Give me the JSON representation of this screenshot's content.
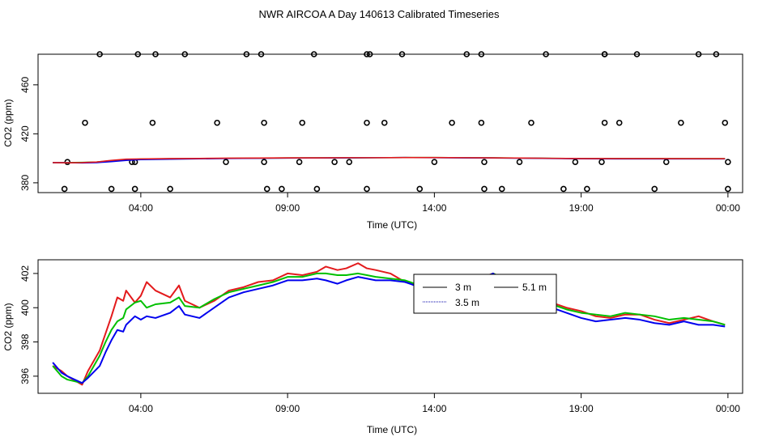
{
  "title": "NWR AIRCOA A  Day 140613  Calibrated Timeseries",
  "colors": {
    "red": "#e31a1c",
    "green": "#00c000",
    "blue": "#0000ee",
    "dark_blue": "#0000aa"
  },
  "chart_data": [
    {
      "type": "scatter",
      "xlabel": "Time (UTC)",
      "ylabel": "CO2 (ppm)",
      "x_ticks": [
        "04:00",
        "09:00",
        "14:00",
        "19:00",
        "00:00"
      ],
      "x_tick_hours": [
        4,
        9,
        14,
        19,
        24
      ],
      "y_ticks": [
        "380",
        "420",
        "460"
      ],
      "y_tick_values": [
        380,
        420,
        460
      ],
      "xlim": [
        0.5,
        24.5
      ],
      "ylim": [
        372,
        485
      ],
      "points": {
        "x": [
          1.4,
          1.5,
          2.1,
          2.6,
          3.0,
          3.7,
          3.8,
          3.8,
          3.9,
          4.4,
          4.5,
          5.0,
          5.5,
          6.6,
          6.9,
          7.6,
          8.1,
          8.2,
          8.2,
          8.3,
          8.8,
          9.4,
          9.5,
          9.9,
          10.0,
          10.6,
          11.1,
          11.7,
          11.7,
          11.7,
          11.8,
          12.3,
          12.9,
          13.5,
          14.0,
          14.6,
          15.1,
          15.6,
          15.6,
          15.7,
          15.7,
          16.3,
          16.9,
          17.3,
          17.8,
          18.4,
          18.8,
          19.2,
          19.7,
          19.8,
          19.8,
          19.8,
          20.3,
          20.9,
          21.5,
          21.9,
          22.4,
          23.0,
          23.6,
          23.9,
          24.0,
          24.0
        ]
      },
      "series_values_note": "",
      "y_points": [
        375,
        397,
        429,
        485,
        375,
        397,
        397,
        375,
        485,
        429,
        485,
        375,
        485,
        429,
        397,
        485,
        485,
        429,
        397,
        375,
        375,
        397,
        429,
        485,
        375,
        397,
        397,
        375,
        429,
        485,
        485,
        429,
        485,
        375,
        397,
        429,
        485,
        485,
        429,
        397,
        375,
        375,
        397,
        429,
        485,
        375,
        397,
        375,
        397,
        429,
        485,
        485,
        429,
        485,
        375,
        397,
        429,
        485,
        485,
        429,
        397,
        375
      ],
      "series": [
        {
          "name": "",
          "color": "green",
          "values": [
            396.5,
            396.5,
            396.7,
            397.0,
            398.0,
            398.8,
            399.4,
            399.6,
            399.8,
            400.0,
            400.1,
            400.3,
            400.4,
            400.4,
            400.5,
            400.6,
            400.6,
            400.5,
            400.4,
            400.2,
            400.0,
            399.8,
            399.7
          ]
        },
        {
          "name": "",
          "color": "blue",
          "values": [
            396.5,
            396.4,
            396.2,
            396.5,
            397.3,
            398.3,
            399.0,
            399.3,
            399.6,
            399.9,
            400.0,
            400.2,
            400.3,
            400.4,
            400.5,
            400.6,
            400.5,
            400.4,
            400.3,
            400.1,
            399.9,
            399.6,
            399.5
          ]
        },
        {
          "name": "",
          "color": "red",
          "values": [
            396.5,
            396.3,
            396.5,
            397.0,
            398.3,
            399.3,
            399.5,
            399.8,
            399.9,
            400.1,
            400.2,
            400.4,
            400.4,
            400.5,
            400.5,
            400.6,
            400.6,
            400.5,
            400.4,
            400.2,
            400.0,
            399.8,
            399.7
          ]
        }
      ],
      "series_x": [
        1.0,
        1.5,
        2.0,
        2.5,
        3.0,
        3.5,
        4.0,
        5.0,
        6.0,
        7.0,
        8.0,
        9.0,
        10.0,
        11.0,
        12.0,
        13.0,
        14.0,
        15.0,
        16.0,
        17.0,
        18.0,
        19.0,
        23.9
      ]
    },
    {
      "type": "line",
      "xlabel": "Time (UTC)",
      "ylabel": "CO2 (ppm)",
      "x_ticks": [
        "04:00",
        "09:00",
        "14:00",
        "19:00",
        "00:00"
      ],
      "x_tick_hours": [
        4,
        9,
        14,
        19,
        24
      ],
      "y_ticks": [
        "396",
        "398",
        "400",
        "402"
      ],
      "y_tick_values": [
        396,
        398,
        400,
        402
      ],
      "xlim": [
        0.5,
        24.5
      ],
      "ylim": [
        395.0,
        402.8
      ],
      "legend": {
        "position": "center-right",
        "entries": [
          "3 m",
          "3.5 m",
          "5.1 m"
        ]
      },
      "series": [
        {
          "name": "3 m",
          "color": "red",
          "x": [
            1.0,
            1.3,
            1.5,
            2.0,
            2.2,
            2.6,
            2.8,
            3.0,
            3.2,
            3.4,
            3.5,
            3.8,
            4.0,
            4.2,
            4.5,
            5.0,
            5.3,
            5.5,
            6.0,
            6.5,
            7.0,
            7.5,
            8.0,
            8.5,
            9.0,
            9.5,
            10.0,
            10.3,
            10.7,
            11.0,
            11.4,
            11.7,
            12.0,
            12.5,
            13.0,
            13.5,
            14.0,
            14.5,
            15.0,
            15.5,
            16.0,
            16.5,
            17.0,
            17.5,
            18.0,
            18.5,
            19.0,
            19.5,
            20.0,
            20.5,
            21.0,
            21.5,
            22.0,
            22.5,
            23.0,
            23.5,
            23.9
          ],
          "values": [
            396.6,
            396.3,
            396.0,
            395.5,
            396.3,
            397.5,
            398.5,
            399.5,
            400.6,
            400.4,
            401.0,
            400.3,
            400.7,
            401.5,
            401.0,
            400.6,
            401.3,
            400.4,
            400.0,
            400.4,
            401.0,
            401.2,
            401.5,
            401.6,
            402.0,
            401.9,
            402.1,
            402.4,
            402.2,
            402.3,
            402.6,
            402.3,
            402.2,
            402.0,
            401.5,
            401.3,
            401.2,
            401.0,
            401.5,
            401.7,
            402.0,
            401.6,
            401.0,
            400.6,
            400.3,
            400.0,
            399.8,
            399.5,
            399.4,
            399.6,
            399.6,
            399.3,
            399.1,
            399.3,
            399.5,
            399.2,
            399.0
          ]
        },
        {
          "name": "3.5 m",
          "color": "green",
          "x": [
            1.0,
            1.3,
            1.5,
            2.0,
            2.2,
            2.6,
            2.8,
            3.0,
            3.2,
            3.4,
            3.5,
            3.8,
            4.0,
            4.2,
            4.5,
            5.0,
            5.3,
            5.5,
            6.0,
            6.5,
            7.0,
            7.5,
            8.0,
            8.5,
            9.0,
            9.5,
            10.0,
            10.3,
            10.7,
            11.0,
            11.4,
            11.7,
            12.0,
            12.5,
            13.0,
            13.5,
            14.0,
            14.5,
            15.0,
            15.5,
            16.0,
            16.5,
            17.0,
            17.5,
            18.0,
            18.5,
            19.0,
            19.5,
            20.0,
            20.5,
            21.0,
            21.5,
            22.0,
            22.5,
            23.0,
            23.5,
            23.9
          ],
          "values": [
            396.6,
            396.0,
            395.8,
            395.6,
            396.0,
            397.2,
            398.0,
            398.7,
            399.2,
            399.4,
            399.9,
            400.3,
            400.4,
            400.0,
            400.2,
            400.3,
            400.6,
            400.1,
            400.0,
            400.5,
            400.9,
            401.1,
            401.3,
            401.5,
            401.8,
            401.8,
            402.0,
            402.0,
            401.9,
            401.9,
            402.0,
            401.9,
            401.8,
            401.7,
            401.6,
            401.3,
            401.3,
            401.1,
            401.5,
            401.6,
            402.0,
            401.6,
            401.0,
            400.5,
            400.2,
            399.9,
            399.7,
            399.6,
            399.5,
            399.7,
            399.6,
            399.5,
            399.3,
            399.4,
            399.3,
            399.2,
            399.0
          ]
        },
        {
          "name": "5.1 m",
          "color": "blue",
          "x": [
            1.0,
            1.3,
            1.5,
            2.0,
            2.2,
            2.6,
            2.8,
            3.0,
            3.2,
            3.4,
            3.5,
            3.8,
            4.0,
            4.2,
            4.5,
            5.0,
            5.3,
            5.5,
            6.0,
            6.5,
            7.0,
            7.5,
            8.0,
            8.5,
            9.0,
            9.5,
            10.0,
            10.3,
            10.7,
            11.0,
            11.4,
            11.7,
            12.0,
            12.5,
            13.0,
            13.5,
            14.0,
            14.5,
            15.0,
            15.5,
            16.0,
            16.5,
            17.0,
            17.5,
            18.0,
            18.5,
            19.0,
            19.5,
            20.0,
            20.5,
            21.0,
            21.5,
            22.0,
            22.5,
            23.0,
            23.5,
            23.9
          ],
          "values": [
            396.8,
            396.2,
            396.0,
            395.6,
            395.9,
            396.6,
            397.4,
            398.1,
            398.7,
            398.6,
            399.0,
            399.5,
            399.3,
            399.5,
            399.4,
            399.7,
            400.1,
            399.6,
            399.4,
            400.0,
            400.6,
            400.9,
            401.1,
            401.3,
            401.6,
            401.6,
            401.7,
            401.6,
            401.4,
            401.6,
            401.8,
            401.7,
            401.6,
            401.6,
            401.5,
            401.2,
            401.0,
            400.9,
            401.2,
            401.6,
            402.0,
            401.3,
            400.6,
            400.3,
            400.0,
            399.7,
            399.4,
            399.2,
            399.3,
            399.4,
            399.3,
            399.1,
            399.0,
            399.2,
            399.0,
            399.0,
            398.9
          ]
        }
      ]
    }
  ]
}
